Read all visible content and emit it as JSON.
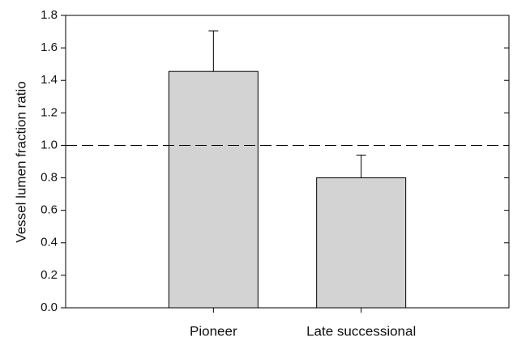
{
  "chart_data": {
    "type": "bar",
    "categories": [
      "Pioneer",
      "Late successional"
    ],
    "values": [
      1.455,
      0.8
    ],
    "error_upper": [
      1.705,
      0.94
    ],
    "ylabel": "Vessel lumen fraction ratio",
    "xlabel": "",
    "ylim": [
      0,
      1.8
    ],
    "yticks": [
      "0.0",
      "0.2",
      "0.4",
      "0.6",
      "0.8",
      "1.0",
      "1.2",
      "1.4",
      "1.6",
      "1.8"
    ],
    "reference_line": 1.0,
    "grid": false,
    "colors": {
      "bar_fill": "#d3d3d3",
      "bar_stroke": "#000000",
      "reference_line": "#000000"
    }
  }
}
